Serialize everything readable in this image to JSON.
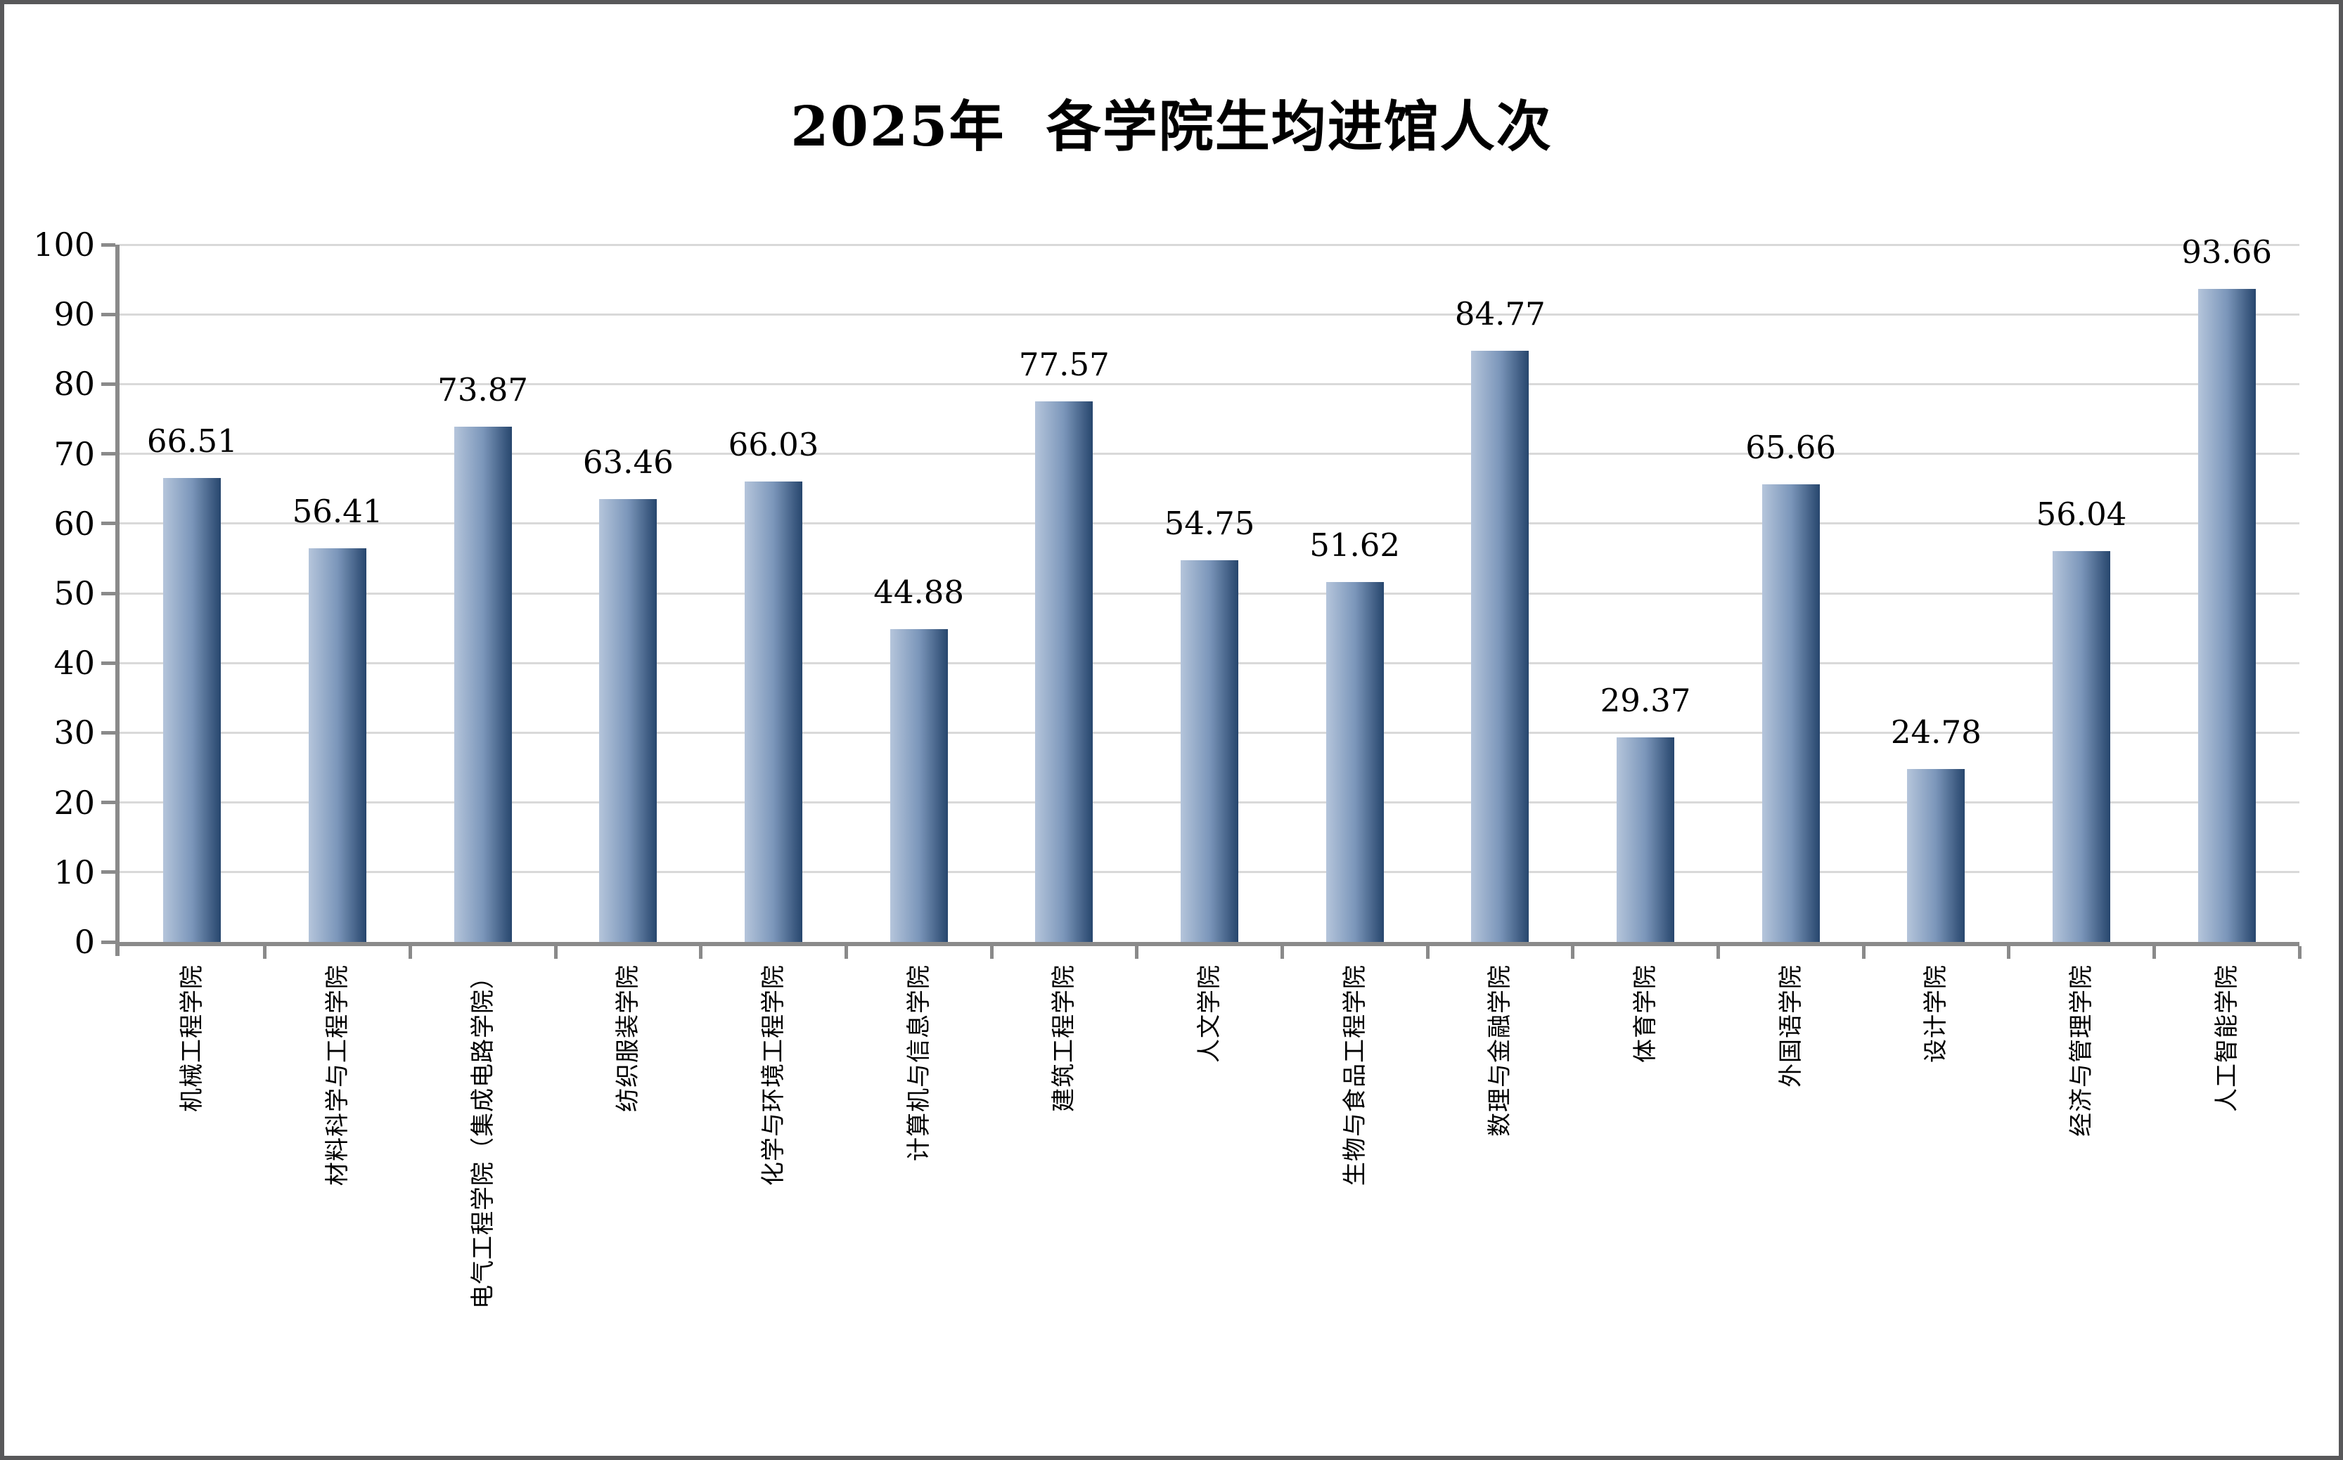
{
  "figure": {
    "background": "#ffffff",
    "border_color": "#58585a"
  },
  "chart_data": {
    "type": "bar",
    "title": "2025年  各学院生均进馆人次",
    "categories": [
      "机械工程学院",
      "材料科学与工程学院",
      "电气工程学院（集成电路学院）",
      "纺织服装学院",
      "化学与环境工程学院",
      "计算机与信息学院",
      "建筑工程学院",
      "人文学院",
      "生物与食品工程学院",
      "数理与金融学院",
      "体育学院",
      "外国语学院",
      "设计学院",
      "经济与管理学院",
      "人工智能学院"
    ],
    "values": [
      66.51,
      56.41,
      73.87,
      63.46,
      66.03,
      44.88,
      77.57,
      54.75,
      51.62,
      84.77,
      29.37,
      65.66,
      24.78,
      56.04,
      93.66
    ],
    "xlabel": "",
    "ylabel": "",
    "ylim": [
      0,
      100
    ],
    "yticks": [
      0,
      10,
      20,
      30,
      40,
      50,
      60,
      70,
      80,
      90,
      100
    ],
    "grid": true,
    "legend": "none",
    "colors": {
      "bar_gradient_left": "#b5c5db",
      "bar_gradient_mid": "#7b96ba",
      "bar_gradient_right": "#27466d",
      "gridline": "#d9d9d9",
      "axis": "#8a8a8a",
      "text": "#000000"
    }
  }
}
